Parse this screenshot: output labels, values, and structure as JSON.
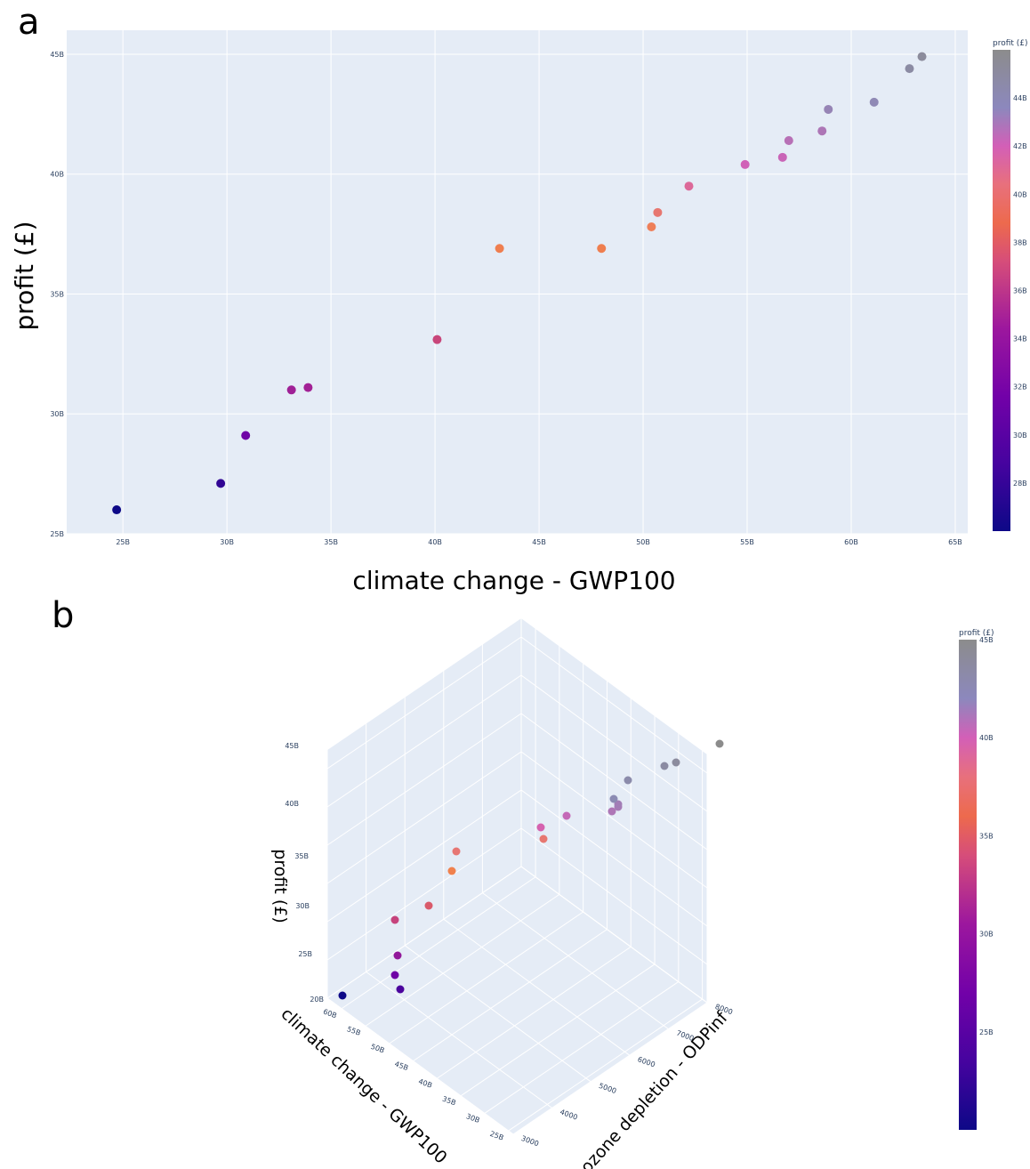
{
  "panels": {
    "a": "a",
    "b": "b"
  },
  "colors": {
    "plot_bg": "#e5ecf6",
    "grid": "#ffffff",
    "tick_text": "#2a3f5f",
    "colorscale": [
      "#0d0887",
      "#6a00a8",
      "#b12a90",
      "#e16462",
      "#f2844b",
      "#d35fb7",
      "#8b8bb5",
      "#8c8c8c"
    ]
  },
  "chart_data": [
    {
      "type": "scatter",
      "panel": "a",
      "xlabel": "climate change - GWP100",
      "ylabel": "profit (£)",
      "xlim": [
        22.3,
        65.6
      ],
      "ylim": [
        25.0,
        46.0
      ],
      "xticks": [
        25,
        30,
        35,
        40,
        45,
        50,
        55,
        60,
        65
      ],
      "xtick_labels": [
        "25B",
        "30B",
        "35B",
        "40B",
        "45B",
        "50B",
        "55B",
        "60B",
        "65B"
      ],
      "yticks": [
        25,
        30,
        35,
        40,
        45
      ],
      "ytick_labels": [
        "25B",
        "30B",
        "35B",
        "40B",
        "45B"
      ],
      "colorbar": {
        "title": "profit (£)",
        "range": [
          26.0,
          46.0
        ],
        "ticks": [
          28,
          30,
          32,
          34,
          36,
          38,
          40,
          42,
          44
        ],
        "tick_labels": [
          "28B",
          "30B",
          "32B",
          "34B",
          "36B",
          "38B",
          "40B",
          "42B",
          "44B"
        ]
      },
      "x": [
        24.7,
        29.7,
        30.9,
        33.1,
        33.9,
        40.1,
        43.1,
        48.0,
        50.4,
        50.7,
        52.2,
        54.9,
        56.7,
        57.0,
        58.6,
        58.9,
        61.1,
        62.8,
        63.4
      ],
      "y": [
        26.0,
        27.1,
        29.1,
        31.0,
        31.1,
        33.1,
        36.9,
        36.9,
        37.8,
        38.4,
        39.5,
        40.4,
        40.7,
        41.4,
        41.8,
        42.7,
        43.0,
        44.4,
        44.9
      ],
      "color": [
        26.0,
        27.1,
        29.1,
        31.0,
        31.1,
        33.1,
        36.9,
        36.9,
        37.8,
        38.4,
        39.5,
        40.4,
        40.7,
        41.4,
        41.8,
        42.7,
        43.0,
        44.4,
        44.9
      ]
    },
    {
      "type": "scatter3d",
      "panel": "b",
      "xlabel": "climate change - GWP100",
      "ylabel": "ozone depletion - ODPinf",
      "zlabel": "profit (£)",
      "xlim": [
        24,
        63
      ],
      "ylim": [
        3000,
        8000
      ],
      "zlim": [
        20,
        45
      ],
      "xticks": [
        25,
        30,
        35,
        40,
        45,
        50,
        55,
        60
      ],
      "xtick_labels": [
        "25B",
        "30B",
        "35B",
        "40B",
        "45B",
        "50B",
        "55B",
        "60B"
      ],
      "yticks": [
        3000,
        4000,
        5000,
        6000,
        7000,
        8000
      ],
      "ytick_labels": [
        "3000",
        "4000",
        "5000",
        "6000",
        "7000",
        "8000"
      ],
      "zticks": [
        20,
        25,
        30,
        35,
        40,
        45
      ],
      "ztick_labels": [
        "20B",
        "25B",
        "30B",
        "35B",
        "40B",
        "45B"
      ],
      "colorbar": {
        "title": "profit (£)",
        "range": [
          20.0,
          45.0
        ],
        "ticks": [
          25,
          30,
          35,
          40,
          45
        ],
        "tick_labels": [
          "25B",
          "30B",
          "35B",
          "40B",
          "45B"
        ]
      },
      "x": [
        24.7,
        29.7,
        30.9,
        33.1,
        33.9,
        40.1,
        43.1,
        48.0,
        50.4,
        50.7,
        52.2,
        54.9,
        56.7,
        57.0,
        58.6,
        58.9,
        61.1,
        62.8,
        63.4
      ],
      "y": [
        3200,
        3600,
        3700,
        3900,
        4000,
        4300,
        4700,
        5200,
        5400,
        5500,
        5700,
        6100,
        6600,
        6700,
        6750,
        6800,
        7100,
        7300,
        7800
      ],
      "z": [
        20.0,
        22.4,
        23.8,
        25.6,
        28.7,
        30.1,
        33.9,
        35.6,
        35.5,
        37.6,
        38.6,
        39.7,
        40.1,
        40.3,
        41.6,
        42.3,
        43.0,
        43.4,
        45.0
      ],
      "color": [
        20.0,
        22.4,
        23.8,
        25.6,
        28.7,
        30.1,
        33.9,
        35.6,
        35.5,
        37.6,
        38.6,
        39.7,
        40.1,
        40.3,
        41.6,
        42.3,
        43.0,
        43.4,
        45.0
      ]
    }
  ]
}
